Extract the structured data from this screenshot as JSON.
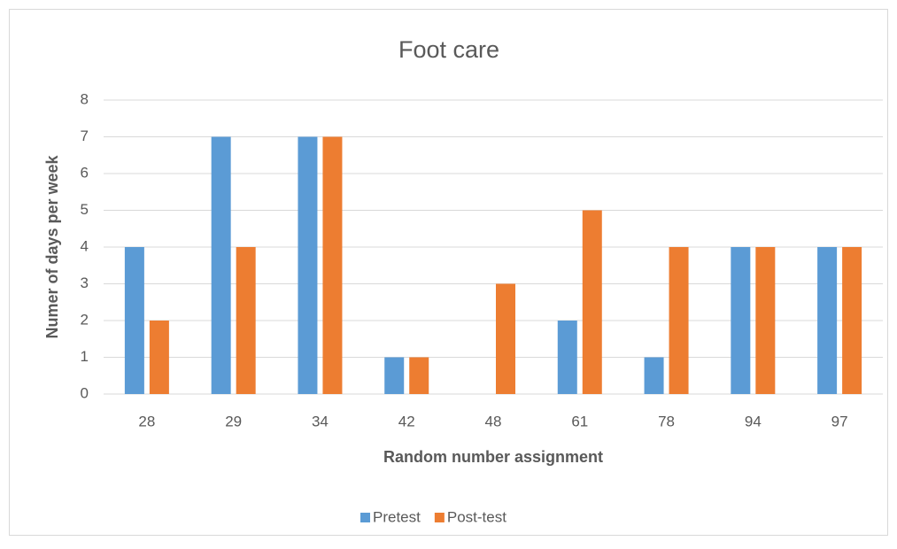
{
  "chart_data": {
    "type": "bar",
    "title": "Foot care",
    "x_label": "Random number assignment",
    "y_label": "Numer of days per week",
    "categories": [
      "28",
      "29",
      "34",
      "42",
      "48",
      "61",
      "78",
      "94",
      "97"
    ],
    "series": [
      {
        "name": "Pretest",
        "color": "#5b9bd5",
        "values": [
          4,
          7,
          7,
          1,
          0,
          2,
          1,
          4,
          4
        ]
      },
      {
        "name": "Post-test",
        "color": "#ed7d31",
        "values": [
          2,
          4,
          7,
          1,
          3,
          5,
          4,
          4,
          4
        ]
      }
    ],
    "ylim": [
      0,
      8
    ],
    "yticks": [
      0,
      1,
      2,
      3,
      4,
      5,
      6,
      7,
      8
    ],
    "grid": true,
    "legend": "bottom"
  }
}
